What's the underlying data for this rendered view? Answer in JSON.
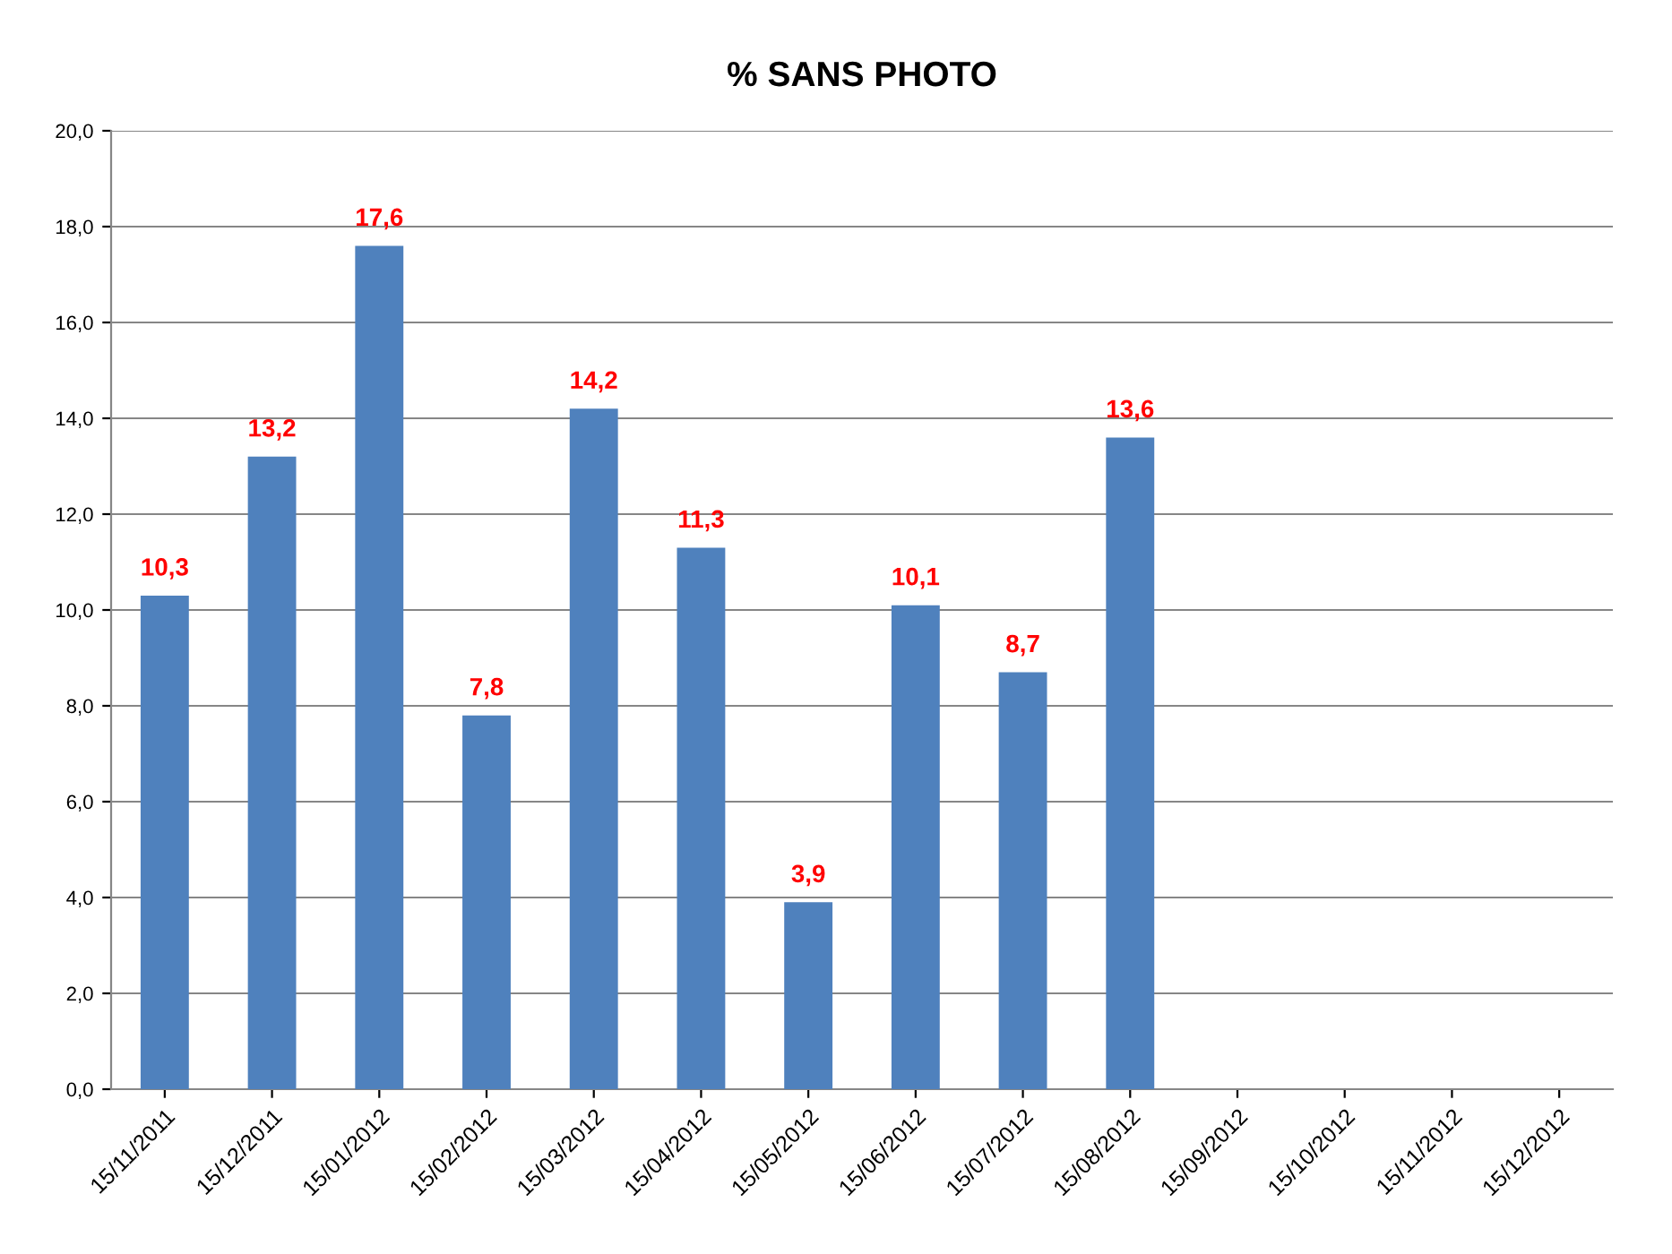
{
  "chart_data": {
    "type": "bar",
    "title": "% SANS PHOTO",
    "categories": [
      "15/11/2011",
      "15/12/2011",
      "15/01/2012",
      "15/02/2012",
      "15/03/2012",
      "15/04/2012",
      "15/05/2012",
      "15/06/2012",
      "15/07/2012",
      "15/08/2012",
      "15/09/2012",
      "15/10/2012",
      "15/11/2012",
      "15/12/2012"
    ],
    "series": [
      {
        "color": "#4f81bd",
        "values": [
          10.3,
          13.2,
          17.6,
          7.8,
          14.2,
          11.3,
          3.9,
          10.1,
          8.7,
          13.6,
          null,
          null,
          null,
          null
        ],
        "value_labels": [
          "10,3",
          "13,2",
          "17,6",
          "7,8",
          "14,2",
          "11,3",
          "3,9",
          "10,1",
          "8,7",
          "13,6",
          null,
          null,
          null,
          null
        ]
      }
    ],
    "ylim": [
      0,
      20
    ],
    "yticks": [
      {
        "value": 0,
        "label": "0,0"
      },
      {
        "value": 2,
        "label": "2,0"
      },
      {
        "value": 4,
        "label": "4,0"
      },
      {
        "value": 6,
        "label": "6,0"
      },
      {
        "value": 8,
        "label": "8,0"
      },
      {
        "value": 10,
        "label": "10,0"
      },
      {
        "value": 12,
        "label": "12,0"
      },
      {
        "value": 14,
        "label": "14,0"
      },
      {
        "value": 16,
        "label": "16,0"
      },
      {
        "value": 18,
        "label": "18,0"
      },
      {
        "value": 20,
        "label": "20,0"
      }
    ],
    "grid": "y",
    "legend": false
  }
}
